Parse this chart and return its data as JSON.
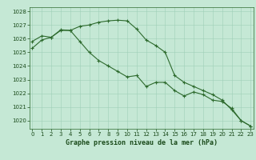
{
  "x": [
    0,
    1,
    2,
    3,
    4,
    5,
    6,
    7,
    8,
    9,
    10,
    11,
    12,
    13,
    14,
    15,
    16,
    17,
    18,
    19,
    20,
    21,
    22,
    23
  ],
  "series1": [
    1025.3,
    1025.9,
    1026.1,
    1026.6,
    1026.6,
    1026.9,
    1027.0,
    1027.2,
    1027.3,
    1027.35,
    1027.3,
    1026.7,
    1025.9,
    1025.5,
    1025.0,
    1023.3,
    1022.8,
    1022.5,
    1022.2,
    1021.9,
    1021.5,
    1020.8,
    1020.0,
    1019.6
  ],
  "series2": [
    1025.8,
    1026.2,
    1026.1,
    1026.65,
    1026.6,
    1025.8,
    1025.0,
    1024.4,
    1024.0,
    1023.6,
    1023.2,
    1023.3,
    1022.5,
    1022.8,
    1022.8,
    1022.2,
    1021.8,
    1022.1,
    1021.9,
    1021.5,
    1021.4,
    1020.9,
    1020.0,
    1019.6
  ],
  "ylim": [
    1019.4,
    1028.3
  ],
  "yticks": [
    1020,
    1021,
    1022,
    1023,
    1024,
    1025,
    1026,
    1027,
    1028
  ],
  "xticks": [
    0,
    1,
    2,
    3,
    4,
    5,
    6,
    7,
    8,
    9,
    10,
    11,
    12,
    13,
    14,
    15,
    16,
    17,
    18,
    19,
    20,
    21,
    22,
    23
  ],
  "xlabel": "Graphe pression niveau de la mer (hPa)",
  "line_color": "#2d6a2d",
  "marker_color": "#2d6a2d",
  "bg_color": "#c5e8d5",
  "grid_color": "#9ecfb8",
  "text_color": "#1a4a1a",
  "spine_color": "#2d6a2d"
}
